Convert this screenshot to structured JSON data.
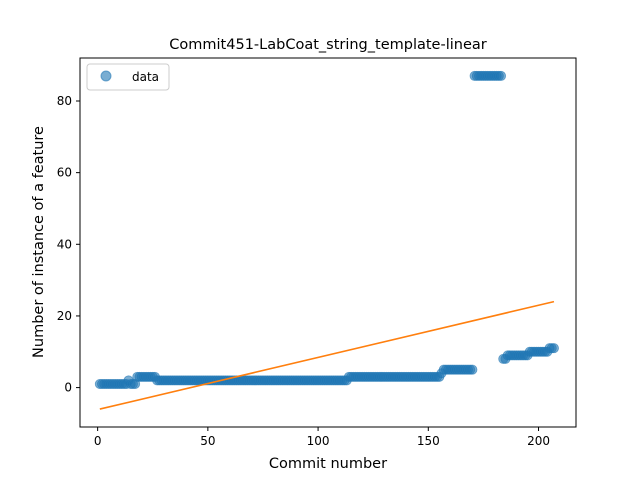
{
  "chart_data": {
    "type": "scatter",
    "title": "Commit451-LabCoat_string_template-linear",
    "xlabel": "Commit number",
    "ylabel": "Number of instance of a feature",
    "xlim": [
      -8,
      217
    ],
    "ylim": [
      -11,
      92
    ],
    "xticks": [
      0,
      50,
      100,
      150,
      200
    ],
    "yticks": [
      0,
      20,
      40,
      60,
      80
    ],
    "grid": false,
    "legend": {
      "placement": "top-left",
      "entries": [
        "data"
      ]
    },
    "series": [
      {
        "name": "data",
        "kind": "points",
        "color": "#1f77b4",
        "segments": [
          {
            "x_from": 1,
            "x_to": 13,
            "y": 1
          },
          {
            "x_from": 14,
            "x_to": 14,
            "y": 2
          },
          {
            "x_from": 15,
            "x_to": 17,
            "y": 1
          },
          {
            "x_from": 18,
            "x_to": 26,
            "y": 3
          },
          {
            "x_from": 27,
            "x_to": 113,
            "y": 2
          },
          {
            "x_from": 114,
            "x_to": 155,
            "y": 3
          },
          {
            "x_from": 156,
            "x_to": 156,
            "y": 4
          },
          {
            "x_from": 157,
            "x_to": 170,
            "y": 5
          },
          {
            "x_from": 171,
            "x_to": 183,
            "y": 87
          },
          {
            "x_from": 184,
            "x_to": 185,
            "y": 8
          },
          {
            "x_from": 186,
            "x_to": 195,
            "y": 9
          },
          {
            "x_from": 196,
            "x_to": 204,
            "y": 10
          },
          {
            "x_from": 205,
            "x_to": 207,
            "y": 11
          }
        ]
      },
      {
        "name": "",
        "kind": "line",
        "color": "#ff7f0e",
        "x": [
          1,
          207
        ],
        "y": [
          -6,
          24
        ]
      }
    ]
  }
}
